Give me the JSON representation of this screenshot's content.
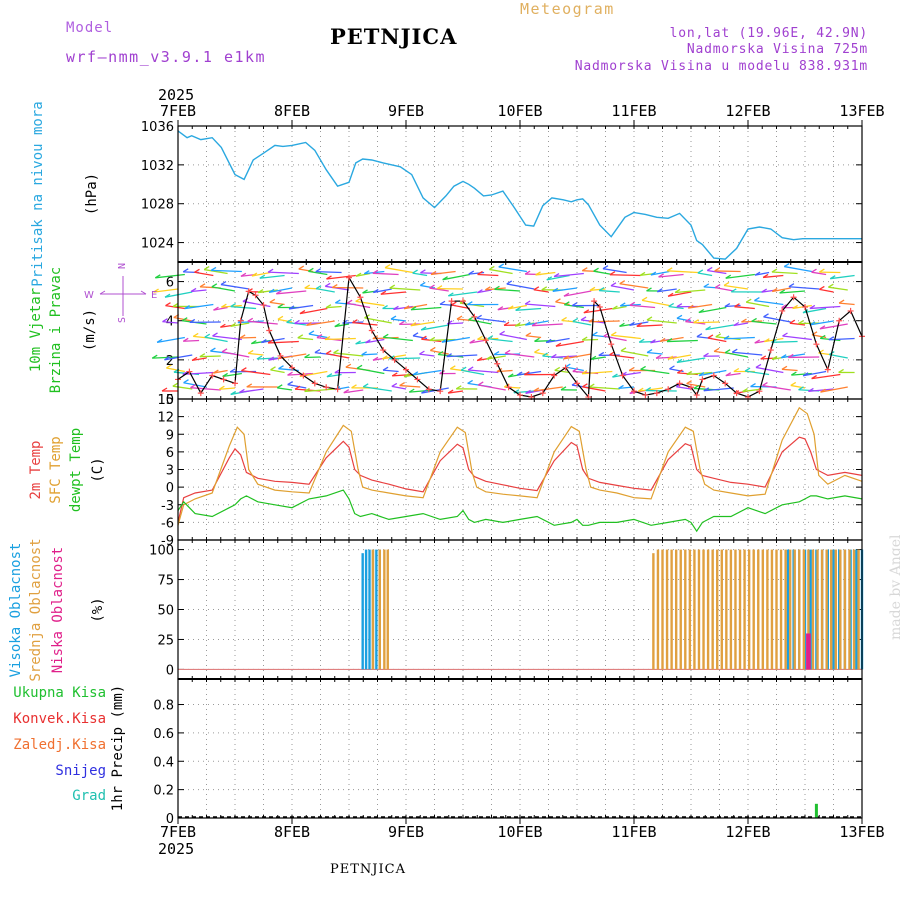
{
  "header": {
    "model_label": "Model",
    "model_name": "wrf—nmm_v3.9.1  e1km",
    "station": "PETNJICA",
    "title": "Meteogram",
    "coords": "lon,lat (19.96E, 42.9N)",
    "elevation": "Nadmorska Visina 725m",
    "model_elevation": "Nadmorska Visina u modelu 838.931m"
  },
  "footer": {
    "station": "PETNJICA",
    "credit": "made by Angel"
  },
  "colors": {
    "pressure": "#2aa8e0",
    "temp2m": "#e84040",
    "sfc_temp": "#e0a030",
    "dewpoint": "#20c020",
    "wind_speed": "#000000",
    "wind_marker": "#ff5050",
    "cloud_high": "#1aa0e0",
    "cloud_mid": "#e0a040",
    "cloud_low": "#e0208a",
    "precip_total": "#20c030",
    "label_wind": "#20c020",
    "label_dirs": "#b050d0"
  },
  "time_axis": {
    "year": "2025",
    "ticks": [
      "7FEB",
      "8FEB",
      "9FEB",
      "10FEB",
      "11FEB",
      "12FEB",
      "13FEB"
    ],
    "days": 6
  },
  "chart_data": [
    {
      "type": "line",
      "panel": "pressure",
      "ylabel_left": "Pritisak na nivou mora",
      "ylabel_units": "(hPa)",
      "ylim": [
        1022,
        1036
      ],
      "yticks": [
        1024,
        1028,
        1032,
        1036
      ],
      "grid": true,
      "series": [
        {
          "name": "Pritisak na nivou mora",
          "x": [
            0,
            0.08,
            0.12,
            0.2,
            0.3,
            0.38,
            0.5,
            0.58,
            0.62,
            0.66,
            0.75,
            0.85,
            0.92,
            1.0,
            1.12,
            1.2,
            1.3,
            1.4,
            1.5,
            1.56,
            1.62,
            1.7,
            1.8,
            1.95,
            2.05,
            2.15,
            2.25,
            2.35,
            2.42,
            2.5,
            2.55,
            2.6,
            2.68,
            2.75,
            2.85,
            2.95,
            3.05,
            3.12,
            3.2,
            3.28,
            3.38,
            3.45,
            3.5,
            3.55,
            3.6,
            3.7,
            3.8,
            3.92,
            4.0,
            4.1,
            4.2,
            4.3,
            4.4,
            4.5,
            4.55,
            4.6,
            4.7,
            4.8,
            4.9,
            5.0,
            5.1,
            5.2,
            5.3,
            5.4,
            5.48,
            5.55,
            5.6,
            5.68,
            5.75,
            5.85,
            5.92,
            6.0
          ],
          "values": [
            1035.5,
            1034.8,
            1035.0,
            1034.6,
            1034.8,
            1033.8,
            1031.0,
            1030.5,
            1031.5,
            1032.5,
            1033.2,
            1034.0,
            1033.9,
            1034.0,
            1034.3,
            1033.5,
            1031.5,
            1029.8,
            1030.2,
            1032.2,
            1032.6,
            1032.5,
            1032.2,
            1031.8,
            1031.0,
            1028.6,
            1027.6,
            1028.8,
            1029.8,
            1030.3,
            1030.0,
            1029.6,
            1028.8,
            1028.9,
            1029.3,
            1027.6,
            1025.8,
            1025.7,
            1027.8,
            1028.6,
            1028.4,
            1028.2,
            1028.4,
            1028.5,
            1027.9,
            1025.8,
            1024.6,
            1026.6,
            1027.1,
            1026.9,
            1026.6,
            1026.5,
            1027.0,
            1025.8,
            1024.2,
            1023.8,
            1022.4,
            1022.3,
            1023.4,
            1025.4,
            1025.6,
            1025.4,
            1024.5,
            1024.3,
            1024.4,
            1024.4,
            1024.4,
            1024.4,
            1024.4,
            1024.4,
            1024.4,
            1024.4
          ]
        }
      ]
    },
    {
      "type": "line",
      "panel": "wind",
      "ylabel_left": [
        "10m Vjetar",
        "Brzina i Pravac"
      ],
      "ylabel_units": "(m/s)",
      "direction_legend": {
        "n": "N",
        "s": "S",
        "w": "W",
        "e": "E"
      },
      "ylim": [
        0,
        7
      ],
      "yticks": [
        0,
        2,
        4,
        6
      ],
      "grid": true,
      "series": [
        {
          "name": "10m Vjetar",
          "x": [
            0,
            0.1,
            0.2,
            0.3,
            0.4,
            0.5,
            0.55,
            0.62,
            0.68,
            0.75,
            0.8,
            0.9,
            1.0,
            1.1,
            1.2,
            1.3,
            1.4,
            1.5,
            1.6,
            1.7,
            1.8,
            1.9,
            2.0,
            2.1,
            2.2,
            2.3,
            2.4,
            2.5,
            2.6,
            2.7,
            2.8,
            2.9,
            3.0,
            3.1,
            3.2,
            3.3,
            3.4,
            3.5,
            3.6,
            3.65,
            3.7,
            3.8,
            3.9,
            4.0,
            4.1,
            4.2,
            4.3,
            4.4,
            4.5,
            4.55,
            4.6,
            4.7,
            4.8,
            4.9,
            5.0,
            5.1,
            5.2,
            5.3,
            5.4,
            5.5,
            5.6,
            5.7,
            5.8,
            5.9,
            6.0
          ],
          "values": [
            1.0,
            1.4,
            0.3,
            1.2,
            1.0,
            0.8,
            4.0,
            5.5,
            5.3,
            4.8,
            3.5,
            2.2,
            1.6,
            1.2,
            0.8,
            0.6,
            0.5,
            6.2,
            5.2,
            3.5,
            2.5,
            2.0,
            1.5,
            1.0,
            0.5,
            0.4,
            5.0,
            5.0,
            4.2,
            3.0,
            1.8,
            0.6,
            0.2,
            0.1,
            0.3,
            1.2,
            1.6,
            0.8,
            0.1,
            5.0,
            4.7,
            2.8,
            1.2,
            0.4,
            0.2,
            0.3,
            0.5,
            0.8,
            0.6,
            0.2,
            1.0,
            1.2,
            0.8,
            0.3,
            0.1,
            0.4,
            2.5,
            4.5,
            5.2,
            4.7,
            2.8,
            1.5,
            4.0,
            4.5,
            3.2
          ]
        }
      ]
    },
    {
      "type": "line",
      "panel": "temperature",
      "ylabel_left": [
        "2m Temp",
        "SFC Temp",
        "dewpt Temp"
      ],
      "ylabel_units": "(C)",
      "ylim": [
        -9,
        15
      ],
      "yticks": [
        -9,
        -6,
        -3,
        0,
        3,
        6,
        9,
        12,
        15
      ],
      "grid": true,
      "series": [
        {
          "name": "2m Temp",
          "x": [
            0,
            0.05,
            0.15,
            0.3,
            0.45,
            0.5,
            0.55,
            0.6,
            0.7,
            0.85,
            1.0,
            1.15,
            1.3,
            1.45,
            1.5,
            1.55,
            1.6,
            1.7,
            1.85,
            2.0,
            2.15,
            2.3,
            2.45,
            2.5,
            2.55,
            2.6,
            2.7,
            2.85,
            3.0,
            3.15,
            3.3,
            3.45,
            3.5,
            3.55,
            3.6,
            3.7,
            3.85,
            4.0,
            4.15,
            4.3,
            4.45,
            4.5,
            4.55,
            4.6,
            4.7,
            4.85,
            5.0,
            5.15,
            5.3,
            5.45,
            5.5,
            5.55,
            5.6,
            5.7,
            5.85,
            6.0
          ],
          "values": [
            -6.0,
            -1.8,
            -1.0,
            -0.5,
            5.0,
            6.5,
            5.5,
            2.5,
            1.5,
            1.0,
            0.8,
            0.5,
            5.0,
            7.8,
            6.8,
            3.0,
            2.0,
            1.2,
            0.5,
            -0.3,
            -0.8,
            4.5,
            7.3,
            6.7,
            3.0,
            1.8,
            1.0,
            0.4,
            -0.2,
            -0.6,
            4.5,
            7.6,
            7.0,
            3.0,
            1.5,
            0.8,
            0.3,
            -0.2,
            -0.5,
            4.7,
            7.4,
            7.0,
            3.0,
            2.0,
            1.5,
            0.8,
            0.5,
            0.0,
            6.0,
            8.5,
            8.2,
            6.0,
            3.0,
            2.0,
            2.5,
            2.0
          ]
        },
        {
          "name": "SFC Temp",
          "x": [
            0,
            0.05,
            0.15,
            0.3,
            0.45,
            0.52,
            0.58,
            0.62,
            0.7,
            0.85,
            1.0,
            1.15,
            1.3,
            1.45,
            1.52,
            1.58,
            1.62,
            1.7,
            1.85,
            2.0,
            2.15,
            2.3,
            2.45,
            2.52,
            2.58,
            2.62,
            2.7,
            2.85,
            3.0,
            3.15,
            3.3,
            3.45,
            3.52,
            3.58,
            3.62,
            3.7,
            3.85,
            4.0,
            4.15,
            4.3,
            4.45,
            4.52,
            4.58,
            4.62,
            4.7,
            4.85,
            5.0,
            5.15,
            5.3,
            5.45,
            5.52,
            5.58,
            5.62,
            5.7,
            5.85,
            6.0
          ],
          "values": [
            -6.5,
            -3.0,
            -2.0,
            -1.0,
            7.0,
            10.2,
            9.0,
            3.0,
            0.5,
            -0.5,
            -0.8,
            -1.0,
            6.0,
            10.5,
            9.5,
            3.0,
            0.0,
            -0.5,
            -1.0,
            -1.5,
            -1.8,
            6.0,
            10.2,
            9.3,
            2.5,
            0.0,
            -0.8,
            -1.2,
            -1.5,
            -1.8,
            6.0,
            10.3,
            9.5,
            3.0,
            0.0,
            -0.5,
            -1.0,
            -1.8,
            -2.0,
            6.0,
            10.2,
            9.5,
            3.0,
            0.5,
            -0.5,
            -1.0,
            -1.5,
            -1.2,
            8.0,
            13.5,
            12.5,
            9.0,
            2.0,
            0.5,
            2.0,
            1.0
          ]
        },
        {
          "name": "dewpt Temp",
          "x": [
            0,
            0.05,
            0.15,
            0.3,
            0.45,
            0.5,
            0.55,
            0.6,
            0.7,
            0.85,
            1.0,
            1.15,
            1.3,
            1.45,
            1.5,
            1.55,
            1.6,
            1.7,
            1.85,
            2.0,
            2.15,
            2.3,
            2.45,
            2.5,
            2.55,
            2.6,
            2.7,
            2.85,
            3.0,
            3.15,
            3.3,
            3.45,
            3.5,
            3.55,
            3.6,
            3.7,
            3.85,
            4.0,
            4.15,
            4.3,
            4.45,
            4.5,
            4.55,
            4.6,
            4.7,
            4.85,
            5.0,
            5.15,
            5.3,
            5.45,
            5.5,
            5.55,
            5.6,
            5.7,
            5.85,
            6.0
          ],
          "values": [
            -4.0,
            -2.5,
            -4.5,
            -5.0,
            -3.5,
            -3.0,
            -2.0,
            -1.5,
            -2.5,
            -3.0,
            -3.5,
            -2.0,
            -1.5,
            -0.5,
            -2.0,
            -4.5,
            -5.0,
            -4.5,
            -5.5,
            -5.0,
            -4.5,
            -5.5,
            -5.0,
            -4.0,
            -5.5,
            -6.0,
            -5.5,
            -6.0,
            -5.5,
            -5.0,
            -6.5,
            -6.0,
            -5.5,
            -6.5,
            -6.5,
            -6.0,
            -6.0,
            -5.5,
            -6.5,
            -6.0,
            -5.5,
            -6.0,
            -7.5,
            -6.0,
            -5.0,
            -5.0,
            -3.5,
            -4.5,
            -3.0,
            -2.5,
            -2.0,
            -1.5,
            -1.5,
            -2.0,
            -1.5,
            -2.0
          ]
        }
      ]
    },
    {
      "type": "bar",
      "panel": "clouds",
      "ylabel_left": [
        "Visoka Oblacnost",
        "Srednja Oblacnost",
        "Niska  Oblacnost"
      ],
      "ylabel_units": "(%)",
      "ylim": [
        0,
        100
      ],
      "yticks": [
        0,
        25,
        50,
        75,
        100
      ],
      "grid": true,
      "series": [
        {
          "name": "Visoka Oblacnost",
          "x": [
            1.62,
            1.65,
            1.68,
            1.71,
            1.74,
            1.77,
            5.35,
            5.4,
            5.45,
            5.5,
            5.55,
            5.6,
            5.65,
            5.7,
            5.75,
            5.8,
            5.85,
            5.9,
            5.95,
            6.0
          ],
          "values": [
            97,
            100,
            100,
            100,
            100,
            100,
            100,
            100,
            100,
            100,
            100,
            100,
            100,
            100,
            100,
            100,
            100,
            100,
            100,
            100
          ]
        },
        {
          "name": "Srednja Oblacnost",
          "x": [
            1.71,
            1.77,
            1.81,
            1.84,
            4.17,
            4.21,
            4.25,
            4.29,
            4.33,
            4.37,
            4.41,
            4.45,
            4.49,
            4.53,
            4.57,
            4.61,
            4.65,
            4.69,
            4.73,
            4.77,
            4.81,
            4.85,
            4.89,
            4.93,
            4.97,
            5.01,
            5.05,
            5.09,
            5.13,
            5.17,
            5.21,
            5.25,
            5.29,
            5.33,
            5.37,
            5.41,
            5.45,
            5.49,
            5.53,
            5.57,
            5.61,
            5.65,
            5.69,
            5.73,
            5.77,
            5.81,
            5.85,
            5.89,
            5.93,
            5.97
          ],
          "values": [
            100,
            100,
            100,
            100,
            97,
            100,
            100,
            100,
            100,
            100,
            100,
            100,
            100,
            100,
            100,
            100,
            100,
            100,
            100,
            100,
            100,
            100,
            100,
            100,
            100,
            100,
            100,
            100,
            100,
            100,
            100,
            100,
            100,
            100,
            100,
            100,
            100,
            100,
            100,
            100,
            100,
            100,
            100,
            100,
            100,
            100,
            100,
            100,
            100,
            100
          ]
        },
        {
          "name": "Niska  Oblacnost",
          "x": [
            5.52,
            5.54
          ],
          "values": [
            30,
            30
          ]
        }
      ]
    },
    {
      "type": "bar",
      "panel": "precip",
      "ylabel_units": "1hr Precip (mm)",
      "legend": [
        "Ukupna  Kisa",
        "Konvek.Kisa",
        "Zaledj.Kisa",
        "Snijeg",
        "Grad"
      ],
      "legend_colors": [
        "#20c030",
        "#e83030",
        "#f07030",
        "#3030e0",
        "#20c0b0"
      ],
      "ylim": [
        0,
        1.0
      ],
      "yticks": [
        0,
        0.2,
        0.4,
        0.6,
        0.8
      ],
      "grid": true,
      "series": [
        {
          "name": "Ukupna  Kisa",
          "x": [
            5.6
          ],
          "values": [
            0.1
          ]
        }
      ]
    }
  ]
}
